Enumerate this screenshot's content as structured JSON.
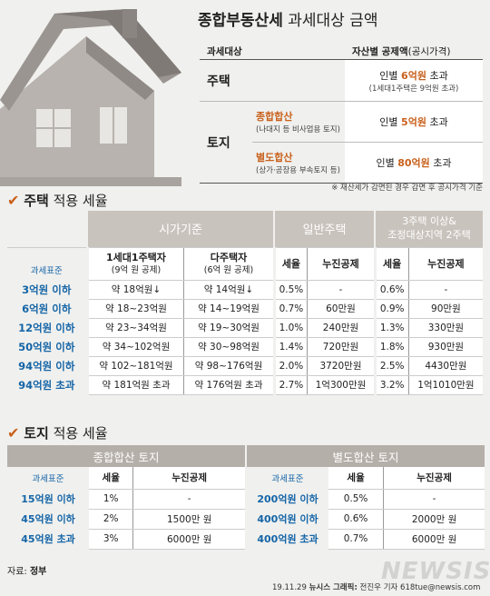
{
  "title": {
    "bold": "종합부동산세",
    "rest": " 과세대상 금액"
  },
  "tax_table": {
    "head_left": "과세대상",
    "head_right_bold": "자산별 공제액",
    "head_right_small": "(공시가격)",
    "house": {
      "label": "주택",
      "pre": "인별 ",
      "amount": "6억원",
      "post": " 초과",
      "sub": "(1세대1주택은 9억원 초과)"
    },
    "land": {
      "label": "토지",
      "comp": {
        "name": "종합합산",
        "desc": "(나대지 등 비사업용 토지)",
        "pre": "인별 ",
        "amount": "5억원",
        "post": " 초과"
      },
      "sep": {
        "name": "별도합산",
        "desc": "(상가·공장용 부속토지 등)",
        "pre": "인별 ",
        "amount": "80억원",
        "post": " 초과"
      }
    }
  },
  "note": "※ 재산세가 감면된 경우 감면 후 공시가격 기준",
  "house_section": {
    "check": "✔",
    "bold": "주택",
    "rest": " 적용 세율"
  },
  "house_rates": {
    "h_market": "시가기준",
    "h_general": "일반주택",
    "h_multi_1": "3주택 이상&",
    "h_multi_2": "조정대상지역 2주택",
    "col_std": "과세표준",
    "col_single": "1세대1주택자",
    "col_single_sub": "(9억 원 공제)",
    "col_multi": "다주택자",
    "col_multi_sub": "(6억 원 공제)",
    "col_rate": "세율",
    "col_deduct": "누진공제",
    "rows": [
      {
        "std": "3억원 이하",
        "single": "약 18억원↓",
        "multi": "약 14억원↓",
        "r1": "0.5%",
        "d1": "-",
        "r2": "0.6%",
        "d2": "-"
      },
      {
        "std": "6억원 이하",
        "single": "약 18~23억원",
        "multi": "약 14~19억원",
        "r1": "0.7%",
        "d1": "60만원",
        "r2": "0.9%",
        "d2": "90만원"
      },
      {
        "std": "12억원 이하",
        "single": "약 23~34억원",
        "multi": "약 19~30억원",
        "r1": "1.0%",
        "d1": "240만원",
        "r2": "1.3%",
        "d2": "330만원"
      },
      {
        "std": "50억원 이하",
        "single": "약 34~102억원",
        "multi": "약 30~98억원",
        "r1": "1.4%",
        "d1": "720만원",
        "r2": "1.8%",
        "d2": "930만원"
      },
      {
        "std": "94억원 이하",
        "single": "약 102~181억원",
        "multi": "약 98~176억원",
        "r1": "2.0%",
        "d1": "3720만원",
        "r2": "2.5%",
        "d2": "4430만원"
      },
      {
        "std": "94억원 초과",
        "single": "약 181억원 초과",
        "multi": "약 176억원 초과",
        "r1": "2.7%",
        "d1": "1억300만원",
        "r2": "3.2%",
        "d2": "1억1010만원"
      }
    ]
  },
  "land_section": {
    "check": "✔",
    "bold": "토지",
    "rest": " 적용 세율"
  },
  "land_comp": {
    "title": "종합합산 토지",
    "col_std": "과세표준",
    "col_rate": "세율",
    "col_deduct": "누진공제",
    "rows": [
      {
        "std": "15억원 이하",
        "rate": "1%",
        "deduct": "-"
      },
      {
        "std": "45억원 이하",
        "rate": "2%",
        "deduct": "1500만 원"
      },
      {
        "std": "45억원 초과",
        "rate": "3%",
        "deduct": "6000만 원"
      }
    ]
  },
  "land_sep": {
    "title": "별도합산 토지",
    "col_std": "과세표준",
    "col_rate": "세율",
    "col_deduct": "누진공제",
    "rows": [
      {
        "std": "200억원 이하",
        "rate": "0.5%",
        "deduct": "-"
      },
      {
        "std": "400억원 이하",
        "rate": "0.6%",
        "deduct": "2000만 원"
      },
      {
        "std": "400억원 초과",
        "rate": "0.7%",
        "deduct": "6000만 원"
      }
    ]
  },
  "source": {
    "label": "자료: ",
    "bold": "정부"
  },
  "credit": {
    "date": "19.11.29 ",
    "bold": "뉴시스 그래픽:",
    "rest": " 전진우 기자 618tue@newsis.com"
  },
  "watermark": "NEWSIS"
}
